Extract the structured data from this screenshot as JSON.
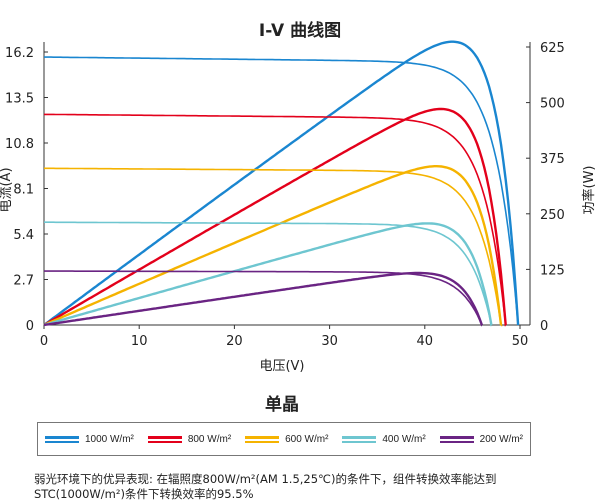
{
  "chart_data": {
    "type": "line",
    "title": "I-V 曲线图",
    "subtitle": "单晶",
    "xlabel": "电压(V)",
    "ylabel": "电流(A)",
    "y2label": "功率(W)",
    "xlim": [
      0,
      50
    ],
    "ylim": [
      0,
      16.2
    ],
    "y2lim": [
      0,
      625
    ],
    "xticks": [
      "0",
      "10",
      "20",
      "30",
      "40",
      "50"
    ],
    "yticks": [
      "0",
      "2.7",
      "5.4",
      "8.1",
      "10.8",
      "13.5",
      "16.2"
    ],
    "y2ticks": [
      "0",
      "125",
      "250",
      "375",
      "500",
      "625"
    ],
    "grid": false,
    "legend_position": "bottom",
    "series": [
      {
        "name": "1000 W/m²",
        "color": "#1a86d0",
        "isc": 15.9,
        "voc": 49.8,
        "pmax": 620,
        "vmp": 40
      },
      {
        "name": "800 W/m²",
        "color": "#e3001b",
        "isc": 12.5,
        "voc": 48.5,
        "pmax": 500,
        "vmp": 39
      },
      {
        "name": "600 W/m²",
        "color": "#f5b300",
        "isc": 9.3,
        "voc": 48,
        "pmax": 374,
        "vmp": 39
      },
      {
        "name": "400 W/m²",
        "color": "#6ec6d0",
        "isc": 6.1,
        "voc": 47,
        "pmax": 243,
        "vmp": 38.5
      },
      {
        "name": "200 W/m²",
        "color": "#6a2483",
        "isc": 3.2,
        "voc": 46,
        "pmax": 122,
        "vmp": 38
      }
    ]
  },
  "note": {
    "line1": "弱光环境下的优异表现: 在辐照度800W/m²(AM 1.5,25℃)的条件下，组件转换效率能达到",
    "line2": "STC(1000W/m²)条件下转换效率的95.5%"
  }
}
